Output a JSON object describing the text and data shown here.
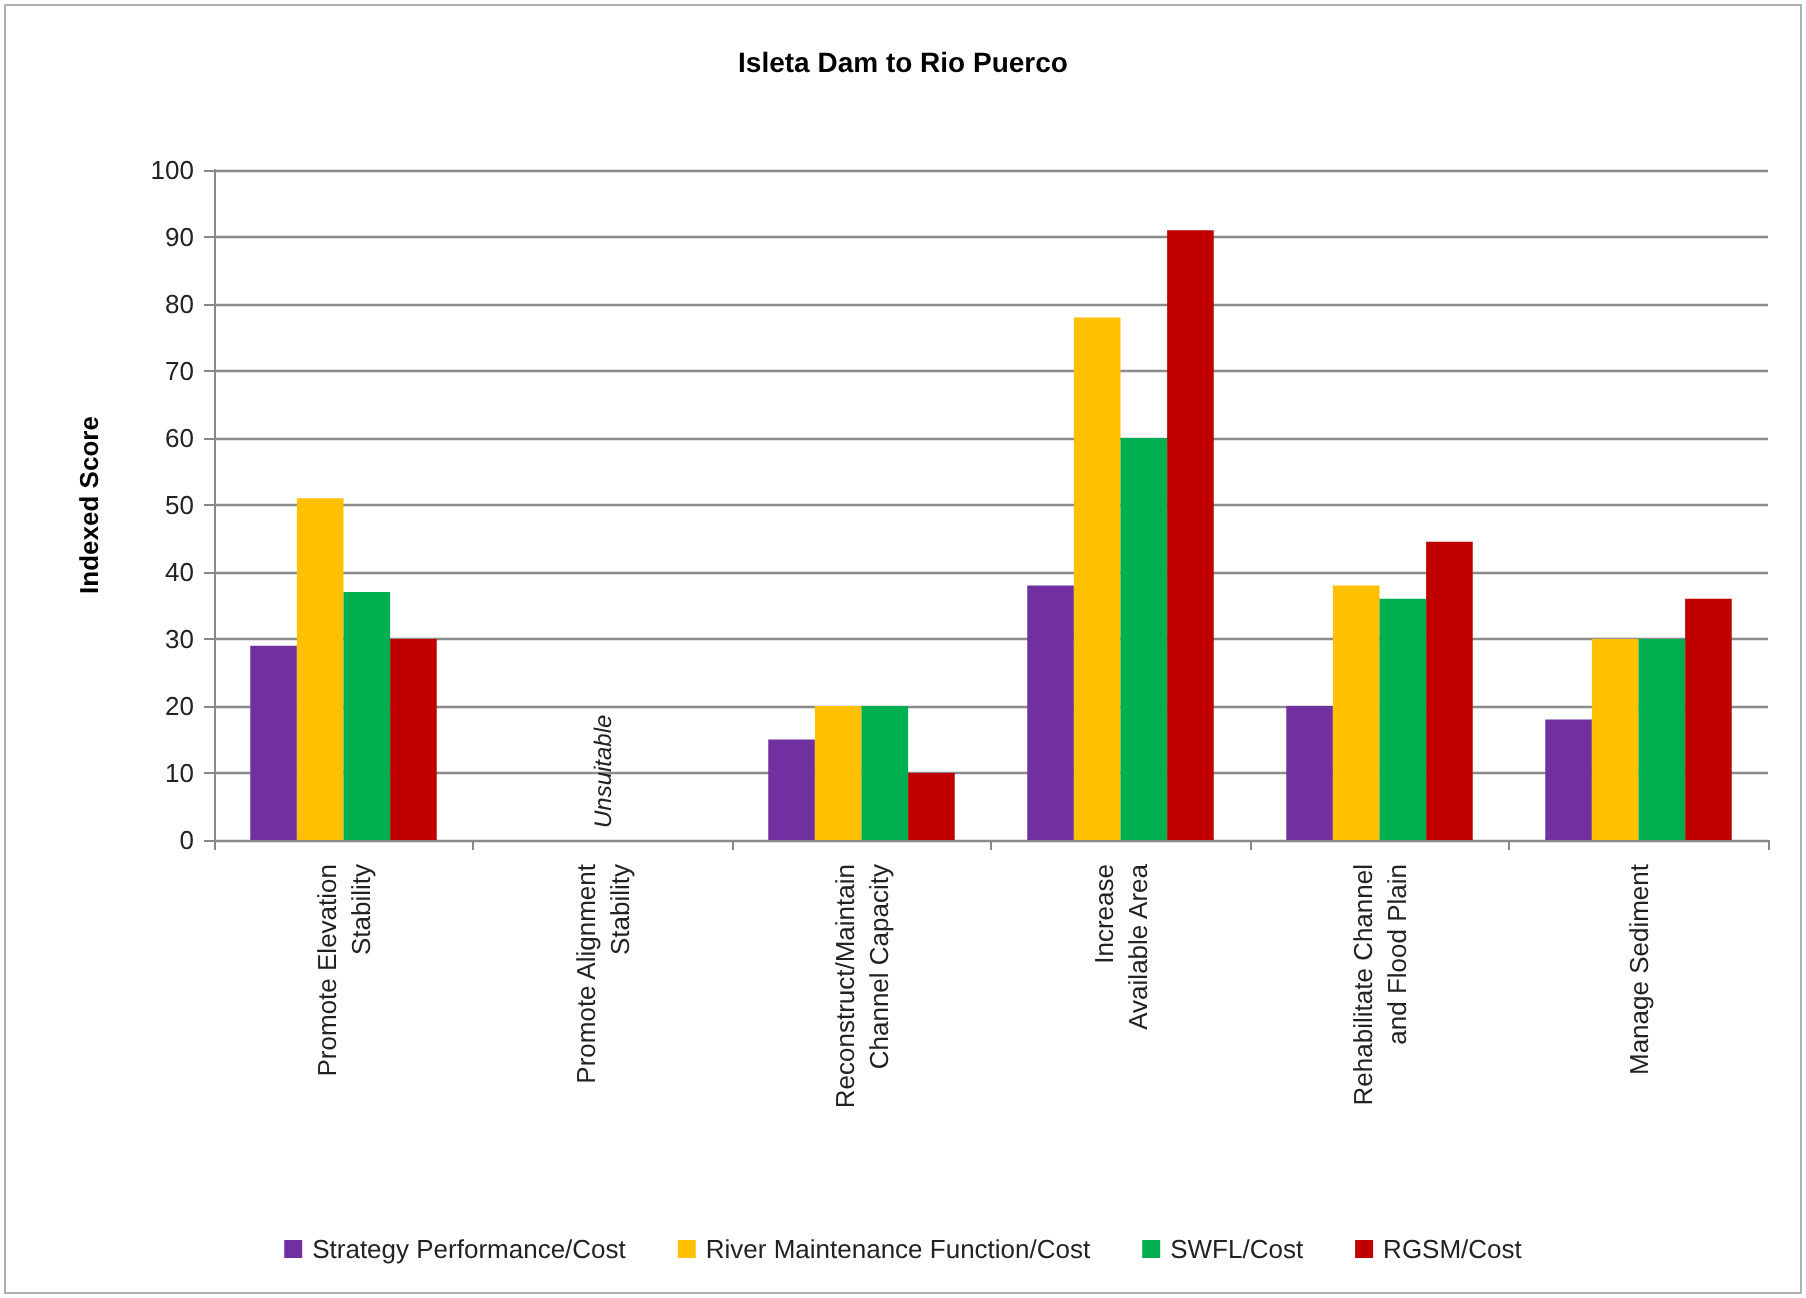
{
  "chart_data": {
    "type": "bar",
    "title": "Isleta Dam to Rio Puerco",
    "ylabel": "Indexed Score",
    "categories": [
      "Promote Elevation\nStability",
      "Promote Alignment\nStability",
      "Reconstruct/Maintain\nChannel Capacity",
      "Increase\nAvailable Area",
      "Rehabilitate Channel\nand Flood Plain",
      "Manage Sediment"
    ],
    "series": [
      {
        "name": "Strategy Performance/Cost",
        "color": "#7030a0",
        "values": [
          29,
          null,
          15,
          38,
          20,
          18
        ]
      },
      {
        "name": "River Maintenance Function/Cost",
        "color": "#ffc000",
        "values": [
          51,
          null,
          20,
          78,
          38,
          30
        ]
      },
      {
        "name": "SWFL/Cost",
        "color": "#00b050",
        "values": [
          37,
          null,
          20,
          60,
          36,
          30
        ]
      },
      {
        "name": "RGSM/Cost",
        "color": "#c00000",
        "values": [
          30,
          null,
          10,
          91,
          44.5,
          36
        ]
      }
    ],
    "ylim": [
      0,
      100
    ],
    "yticks": [
      0,
      10,
      20,
      30,
      40,
      50,
      60,
      70,
      80,
      90,
      100
    ],
    "grid": "y",
    "legend": "bottom",
    "annotations": [
      "Unsuitable"
    ]
  }
}
